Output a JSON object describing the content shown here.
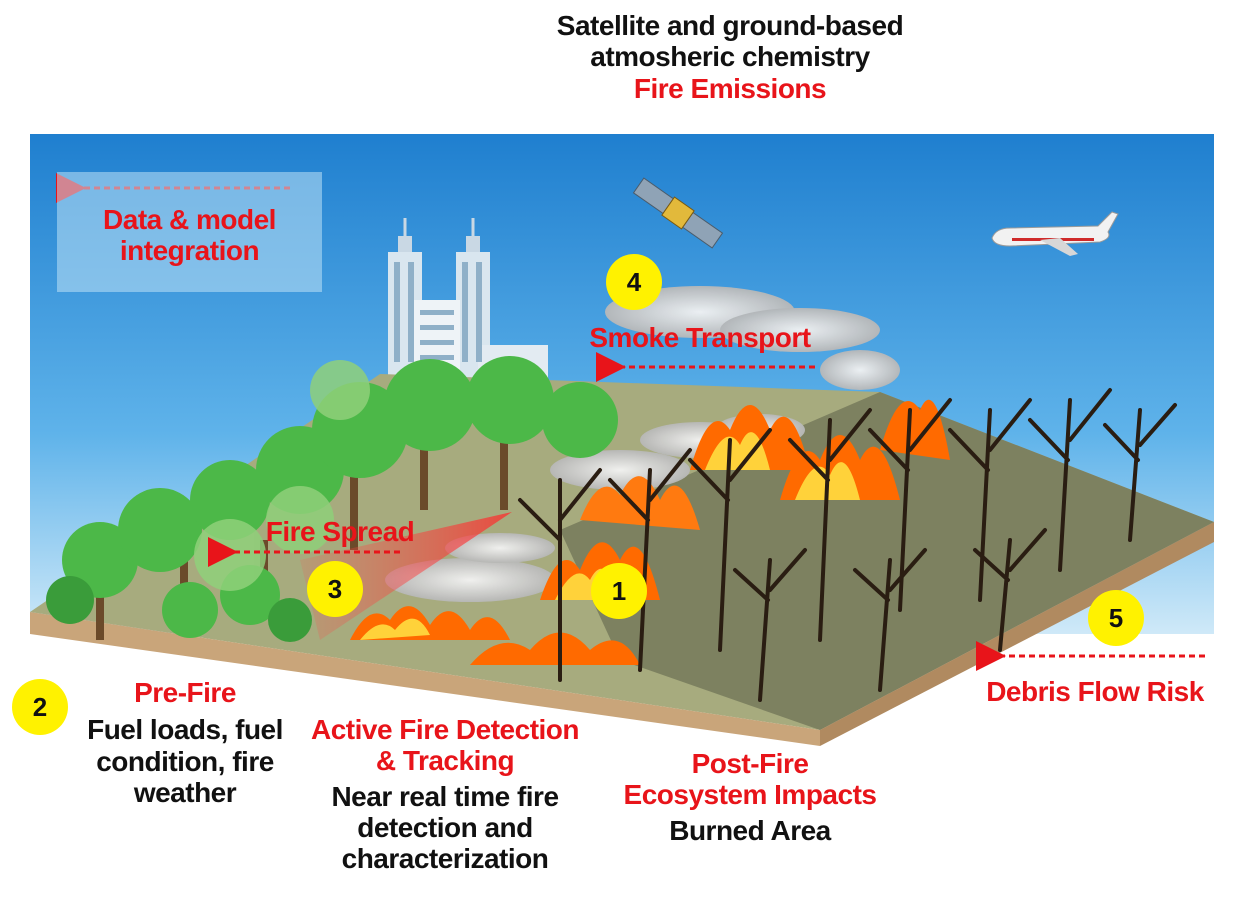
{
  "header": {
    "line1": "Satellite and ground-based",
    "line2": "atmosheric  chemistry",
    "line3": "Fire Emissions"
  },
  "integration": {
    "line1": "Data & model",
    "line2": "integration"
  },
  "labels": {
    "smoke_transport": "Smoke Transport",
    "fire_spread": "Fire Spread",
    "debris_flow": "Debris Flow Risk"
  },
  "pre_fire": {
    "title": "Pre-Fire",
    "line1": "Fuel loads, fuel",
    "line2": "condition, fire weather"
  },
  "active_fire": {
    "title1": "Active Fire Detection",
    "title2": "& Tracking",
    "line1": "Near real time fire",
    "line2": "detection and",
    "line3": "characterization"
  },
  "post_fire": {
    "title1": "Post-Fire",
    "title2": "Ecosystem Impacts",
    "line1": "Burned Area"
  },
  "badges": [
    "1",
    "2",
    "3",
    "4",
    "5"
  ],
  "colors": {
    "label_red": "#e8141a",
    "badge_yellow": "#fff200",
    "sky_top": "#2a8bd6",
    "ground": "#a7ab7e",
    "flame": "#ff6a00"
  },
  "icons": [
    "satellite-icon",
    "airplane-icon",
    "city-buildings-icon",
    "tree-icons",
    "flame-icons",
    "smoke-plume-icons"
  ]
}
